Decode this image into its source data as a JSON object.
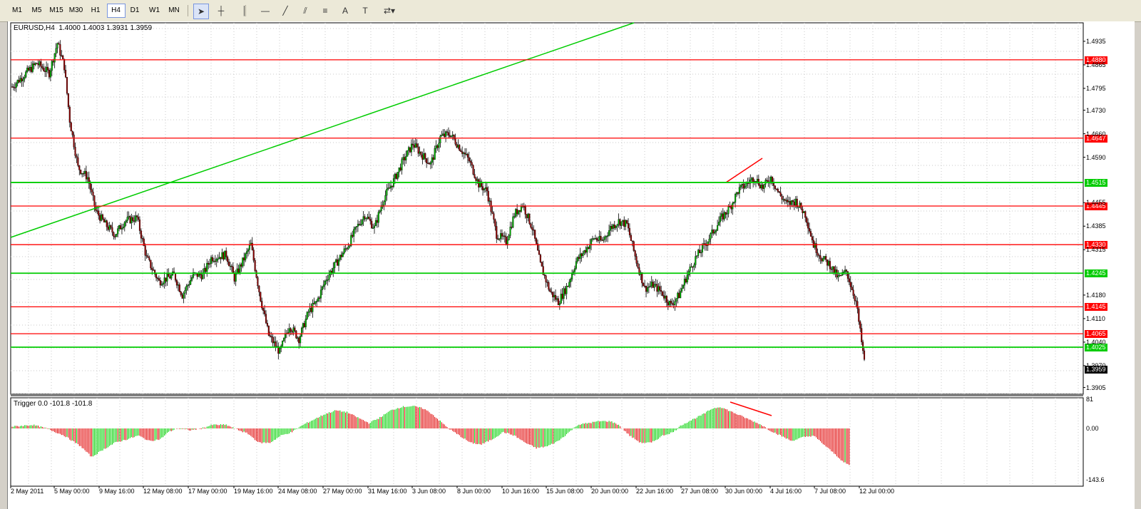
{
  "toolbar": {
    "timeframes": [
      {
        "label": "M1",
        "active": false
      },
      {
        "label": "M5",
        "active": false
      },
      {
        "label": "M15",
        "active": false
      },
      {
        "label": "M30",
        "active": false
      },
      {
        "label": "H1",
        "active": false
      },
      {
        "label": "H4",
        "active": true
      },
      {
        "label": "D1",
        "active": false
      },
      {
        "label": "W1",
        "active": false
      },
      {
        "label": "MN",
        "active": false
      }
    ],
    "tools": [
      {
        "name": "cursor-icon",
        "glyph": "➤",
        "active": true
      },
      {
        "name": "crosshair-icon",
        "glyph": "┼",
        "active": false
      },
      {
        "name": "vertical-line-icon",
        "glyph": "│",
        "active": false
      },
      {
        "name": "horizontal-line-icon",
        "glyph": "—",
        "active": false
      },
      {
        "name": "trendline-icon",
        "glyph": "╱",
        "active": false
      },
      {
        "name": "equidistant-channel-icon",
        "glyph": "⫽",
        "active": false
      },
      {
        "name": "fibonacci-icon",
        "glyph": "≡",
        "active": false
      },
      {
        "name": "text-icon",
        "glyph": "A",
        "active": false
      },
      {
        "name": "text-label-icon",
        "glyph": "T",
        "active": false
      },
      {
        "name": "shapes-menu-icon",
        "glyph": "⇄▾",
        "active": false
      }
    ]
  },
  "main_chart": {
    "symbol_header": "EURUSD,H4  1.4000 1.4003 1.3931 1.3959",
    "colors": {
      "bull": "#00b000",
      "bear": "#8b0000",
      "red_level": "#ff0000",
      "green_level": "#00cc00",
      "price_bg": "#000000"
    },
    "price_scale_labels": [
      "1.4935",
      "1.4865",
      "1.4795",
      "1.4730",
      "1.4660",
      "1.4590",
      "1.4455",
      "1.4385",
      "1.4315",
      "1.4180",
      "1.4110",
      "1.4040",
      "1.3970",
      "1.3905"
    ],
    "horizontal_levels": [
      {
        "price": "1.4880",
        "color": "red"
      },
      {
        "price": "1.4647",
        "color": "red"
      },
      {
        "price": "1.4515",
        "color": "green"
      },
      {
        "price": "1.4445",
        "color": "red"
      },
      {
        "price": "1.4330",
        "color": "red"
      },
      {
        "price": "1.4245",
        "color": "green"
      },
      {
        "price": "1.4145",
        "color": "red"
      },
      {
        "price": "1.4065",
        "color": "red"
      },
      {
        "price": "1.4025",
        "color": "green"
      }
    ],
    "current_price": "1.3959"
  },
  "indicator": {
    "header": "Trigger 0.0 -101.8 -101.8",
    "scale_labels": [
      "81",
      "0.00",
      "-143.6"
    ]
  },
  "time_labels": [
    "2 May 2011",
    "5 May 00:00",
    "9 May 16:00",
    "12 May 08:00",
    "17 May 00:00",
    "19 May 16:00",
    "24 May 08:00",
    "27 May 00:00",
    "31 May 16:00",
    "3 Jun 08:00",
    "8 Jun 00:00",
    "10 Jun 16:00",
    "15 Jun 08:00",
    "20 Jun 00:00",
    "22 Jun 16:00",
    "27 Jun 08:00",
    "30 Jun 00:00",
    "4 Jul 16:00",
    "7 Jul 08:00",
    "12 Jul 00:00"
  ],
  "chart_data": {
    "type": "candlestick",
    "symbol": "EURUSD",
    "timeframe": "H4",
    "ylim": [
      1.3885,
      1.499
    ],
    "anchors": [
      [
        0,
        1.48
      ],
      [
        10,
        1.484
      ],
      [
        18,
        1.487
      ],
      [
        27,
        1.484
      ],
      [
        33,
        1.493
      ],
      [
        38,
        1.486
      ],
      [
        42,
        1.47
      ],
      [
        48,
        1.456
      ],
      [
        55,
        1.453
      ],
      [
        61,
        1.443
      ],
      [
        68,
        1.439
      ],
      [
        75,
        1.436
      ],
      [
        82,
        1.44
      ],
      [
        91,
        1.441
      ],
      [
        98,
        1.429
      ],
      [
        107,
        1.422
      ],
      [
        118,
        1.424
      ],
      [
        124,
        1.418
      ],
      [
        132,
        1.424
      ],
      [
        139,
        1.424
      ],
      [
        145,
        1.429
      ],
      [
        156,
        1.43
      ],
      [
        162,
        1.423
      ],
      [
        174,
        1.433
      ],
      [
        181,
        1.417
      ],
      [
        187,
        1.406
      ],
      [
        195,
        1.401
      ],
      [
        202,
        1.409
      ],
      [
        209,
        1.405
      ],
      [
        216,
        1.413
      ],
      [
        222,
        1.416
      ],
      [
        229,
        1.423
      ],
      [
        237,
        1.428
      ],
      [
        245,
        1.433
      ],
      [
        251,
        1.438
      ],
      [
        257,
        1.442
      ],
      [
        264,
        1.438
      ],
      [
        271,
        1.447
      ],
      [
        278,
        1.452
      ],
      [
        285,
        1.458
      ],
      [
        292,
        1.463
      ],
      [
        298,
        1.46
      ],
      [
        305,
        1.457
      ],
      [
        312,
        1.465
      ],
      [
        319,
        1.466
      ],
      [
        326,
        1.462
      ],
      [
        333,
        1.458
      ],
      [
        340,
        1.451
      ],
      [
        346,
        1.449
      ],
      [
        353,
        1.436
      ],
      [
        360,
        1.434
      ],
      [
        366,
        1.442
      ],
      [
        372,
        1.445
      ],
      [
        379,
        1.438
      ],
      [
        385,
        1.427
      ],
      [
        392,
        1.419
      ],
      [
        398,
        1.416
      ],
      [
        405,
        1.421
      ],
      [
        411,
        1.428
      ],
      [
        417,
        1.431
      ],
      [
        424,
        1.435
      ],
      [
        430,
        1.434
      ],
      [
        436,
        1.438
      ],
      [
        442,
        1.44
      ],
      [
        448,
        1.439
      ],
      [
        455,
        1.428
      ],
      [
        461,
        1.42
      ],
      [
        467,
        1.421
      ],
      [
        473,
        1.419
      ],
      [
        480,
        1.415
      ],
      [
        486,
        1.418
      ],
      [
        492,
        1.424
      ],
      [
        498,
        1.429
      ],
      [
        505,
        1.433
      ],
      [
        511,
        1.437
      ],
      [
        517,
        1.441
      ],
      [
        523,
        1.444
      ],
      [
        529,
        1.449
      ],
      [
        535,
        1.451
      ],
      [
        541,
        1.453
      ],
      [
        547,
        1.45
      ],
      [
        553,
        1.453
      ],
      [
        559,
        1.448
      ],
      [
        565,
        1.445
      ],
      [
        571,
        1.446
      ],
      [
        578,
        1.442
      ],
      [
        584,
        1.433
      ],
      [
        590,
        1.429
      ],
      [
        596,
        1.427
      ],
      [
        602,
        1.423
      ],
      [
        608,
        1.425
      ],
      [
        615,
        1.416
      ],
      [
        621,
        1.398
      ]
    ],
    "indicator_anchors": [
      [
        0,
        5
      ],
      [
        15,
        10
      ],
      [
        25,
        0
      ],
      [
        38,
        -20
      ],
      [
        50,
        -50
      ],
      [
        58,
        -80
      ],
      [
        66,
        -60
      ],
      [
        75,
        -40
      ],
      [
        84,
        -30
      ],
      [
        92,
        -20
      ],
      [
        100,
        -35
      ],
      [
        108,
        -30
      ],
      [
        114,
        -10
      ],
      [
        120,
        0
      ],
      [
        130,
        -5
      ],
      [
        138,
        0
      ],
      [
        146,
        10
      ],
      [
        156,
        10
      ],
      [
        162,
        0
      ],
      [
        172,
        -15
      ],
      [
        180,
        -40
      ],
      [
        188,
        -40
      ],
      [
        196,
        -20
      ],
      [
        204,
        -10
      ],
      [
        212,
        10
      ],
      [
        220,
        25
      ],
      [
        228,
        40
      ],
      [
        236,
        50
      ],
      [
        244,
        45
      ],
      [
        252,
        30
      ],
      [
        260,
        15
      ],
      [
        268,
        30
      ],
      [
        276,
        50
      ],
      [
        284,
        60
      ],
      [
        292,
        62
      ],
      [
        300,
        55
      ],
      [
        306,
        40
      ],
      [
        312,
        20
      ],
      [
        318,
        0
      ],
      [
        326,
        -20
      ],
      [
        334,
        -40
      ],
      [
        342,
        -45
      ],
      [
        350,
        -30
      ],
      [
        358,
        -10
      ],
      [
        366,
        -20
      ],
      [
        374,
        -40
      ],
      [
        382,
        -55
      ],
      [
        390,
        -50
      ],
      [
        398,
        -35
      ],
      [
        406,
        -10
      ],
      [
        412,
        10
      ],
      [
        420,
        15
      ],
      [
        428,
        20
      ],
      [
        436,
        20
      ],
      [
        442,
        10
      ],
      [
        450,
        -20
      ],
      [
        458,
        -40
      ],
      [
        466,
        -40
      ],
      [
        474,
        -20
      ],
      [
        482,
        -10
      ],
      [
        488,
        10
      ],
      [
        496,
        25
      ],
      [
        504,
        40
      ],
      [
        510,
        55
      ],
      [
        516,
        60
      ],
      [
        522,
        50
      ],
      [
        528,
        40
      ],
      [
        534,
        30
      ],
      [
        540,
        20
      ],
      [
        546,
        10
      ],
      [
        552,
        -5
      ],
      [
        560,
        -20
      ],
      [
        568,
        -35
      ],
      [
        576,
        -25
      ],
      [
        584,
        -20
      ],
      [
        590,
        -40
      ],
      [
        596,
        -60
      ],
      [
        602,
        -80
      ],
      [
        606,
        -95
      ],
      [
        610,
        -102
      ]
    ],
    "diagonal_trendline": {
      "color": "#00cc00"
    },
    "divergence_marks": {
      "color": "#ff0000"
    }
  }
}
